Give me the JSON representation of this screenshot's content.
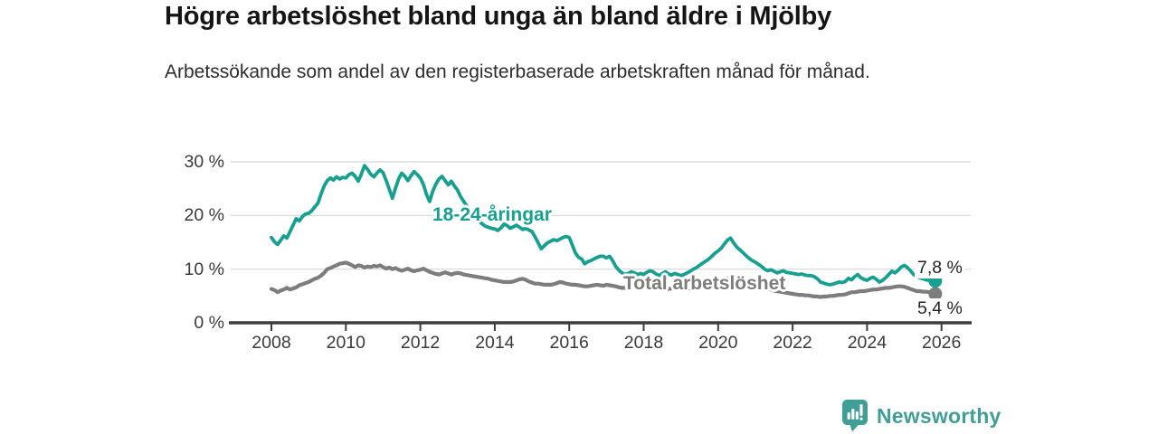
{
  "header": {
    "title": "Högre arbetslöshet bland unga än bland äldre i Mjölby",
    "subtitle": "Arbetssökande som andel av den registerbaserade arbetskraften månad för månad."
  },
  "footer": {
    "brand": "Newsworthy",
    "brand_color": "#3f9e96",
    "logo_icon": "bar-chart-speech-bubble-icon"
  },
  "chart_data": {
    "type": "line",
    "title": "Högre arbetslöshet bland unga än bland äldre i Mjölby",
    "subtitle": "Arbetssökande som andel av den registerbaserade arbetskraften månad för månad.",
    "x_unit": "month",
    "x_start": "2008-01",
    "x_end": "2025-11",
    "ylim": [
      0,
      30
    ],
    "grid": "horizontal",
    "grid_color": "#d8d8d8",
    "axis_color": "#3d3d3d",
    "tick_label_color": "#3a3a3a",
    "y_ticks": [
      {
        "label": "0 %",
        "value": 0
      },
      {
        "label": "10 %",
        "value": 10
      },
      {
        "label": "20 %",
        "value": 20
      },
      {
        "label": "30 %",
        "value": 30
      }
    ],
    "x_ticks": [
      {
        "label": "2008",
        "year": 2008
      },
      {
        "label": "2010",
        "year": 2010
      },
      {
        "label": "2012",
        "year": 2012
      },
      {
        "label": "2014",
        "year": 2014
      },
      {
        "label": "2016",
        "year": 2016
      },
      {
        "label": "2018",
        "year": 2018
      },
      {
        "label": "2020",
        "year": 2020
      },
      {
        "label": "2022",
        "year": 2022
      },
      {
        "label": "2024",
        "year": 2024
      },
      {
        "label": "2026",
        "year": 2026
      }
    ],
    "series": [
      {
        "name": "18-24-åringar",
        "color": "#17a08f",
        "line_width": 3.8,
        "end_value": 7.8,
        "end_label": "7,8 %",
        "values": [
          15.9,
          15.1,
          14.6,
          15.4,
          16.2,
          15.8,
          17.0,
          18.2,
          19.4,
          19.0,
          19.8,
          20.3,
          20.4,
          20.9,
          21.6,
          22.3,
          24.0,
          25.5,
          26.5,
          27.0,
          26.6,
          27.2,
          26.8,
          27.1,
          27.0,
          27.6,
          27.9,
          27.3,
          26.4,
          27.7,
          29.3,
          28.6,
          27.7,
          27.2,
          27.9,
          28.5,
          28.0,
          26.5,
          24.9,
          23.2,
          25.1,
          26.8,
          27.9,
          27.3,
          26.5,
          27.4,
          28.2,
          27.6,
          27.0,
          25.8,
          23.9,
          22.6,
          24.5,
          25.8,
          26.8,
          27.3,
          26.5,
          25.7,
          26.4,
          25.5,
          24.7,
          23.5,
          22.6,
          21.8,
          21.0,
          20.2,
          19.5,
          18.9,
          18.4,
          18.0,
          17.8,
          17.6,
          17.5,
          17.2,
          17.7,
          18.4,
          18.1,
          17.6,
          17.9,
          18.2,
          17.8,
          17.4,
          17.6,
          17.3,
          17.0,
          16.0,
          14.9,
          13.8,
          14.4,
          14.9,
          15.2,
          15.5,
          15.3,
          15.6,
          15.9,
          16.1,
          15.9,
          14.5,
          13.0,
          12.2,
          11.9,
          11.0,
          11.4,
          11.6,
          11.9,
          12.2,
          12.4,
          12.4,
          12.1,
          12.4,
          11.6,
          10.5,
          9.8,
          9.3,
          9.0,
          9.2,
          9.5,
          9.3,
          9.0,
          9.2,
          9.0,
          9.4,
          9.7,
          9.5,
          9.1,
          8.8,
          9.2,
          9.5,
          9.1,
          8.9,
          9.2,
          9.0,
          8.8,
          9.0,
          9.3,
          9.6,
          10.0,
          10.3,
          10.7,
          11.1,
          11.5,
          11.9,
          12.4,
          13.0,
          13.4,
          13.9,
          14.7,
          15.4,
          15.8,
          14.9,
          14.1,
          13.6,
          13.1,
          12.5,
          12.0,
          11.6,
          11.3,
          10.9,
          10.5,
          10.0,
          9.7,
          9.9,
          9.6,
          9.3,
          9.5,
          9.7,
          9.4,
          9.3,
          9.2,
          9.1,
          9.0,
          9.1,
          8.9,
          8.8,
          8.8,
          8.6,
          8.2,
          7.6,
          7.4,
          7.2,
          7.1,
          7.2,
          7.4,
          7.6,
          7.5,
          7.7,
          8.3,
          8.0,
          8.6,
          9.0,
          8.4,
          8.1,
          7.9,
          8.3,
          8.5,
          8.1,
          7.6,
          7.9,
          8.4,
          9.0,
          9.6,
          9.3,
          9.8,
          10.4,
          10.7,
          10.3,
          9.7,
          9.0,
          8.7,
          8.4,
          8.2,
          8.0,
          7.9,
          7.6,
          7.8
        ]
      },
      {
        "name": "Total arbetslöshet",
        "color": "#7d7d7d",
        "line_width": 4.2,
        "end_value": 5.4,
        "end_label": "5,4 %",
        "values": [
          6.3,
          6.1,
          5.7,
          6.0,
          6.2,
          6.5,
          6.2,
          6.4,
          6.6,
          7.0,
          7.2,
          7.4,
          7.6,
          7.9,
          8.2,
          8.4,
          8.8,
          9.3,
          10.0,
          10.2,
          10.5,
          10.7,
          11.0,
          11.1,
          11.2,
          11.0,
          10.7,
          10.4,
          10.7,
          10.6,
          10.3,
          10.5,
          10.4,
          10.6,
          10.5,
          10.7,
          10.4,
          10.1,
          10.3,
          10.0,
          10.2,
          9.9,
          9.7,
          9.9,
          10.1,
          9.8,
          9.6,
          9.8,
          9.9,
          10.1,
          9.8,
          9.5,
          9.3,
          9.1,
          9.0,
          9.2,
          9.4,
          9.2,
          9.0,
          9.2,
          9.3,
          9.2,
          9.0,
          8.9,
          8.8,
          8.7,
          8.6,
          8.5,
          8.4,
          8.3,
          8.2,
          8.0,
          7.9,
          7.8,
          7.7,
          7.6,
          7.6,
          7.6,
          7.7,
          7.9,
          8.1,
          8.2,
          8.0,
          7.7,
          7.5,
          7.3,
          7.3,
          7.2,
          7.1,
          7.1,
          7.1,
          7.2,
          7.4,
          7.6,
          7.5,
          7.3,
          7.2,
          7.1,
          7.1,
          7.0,
          6.9,
          6.8,
          6.8,
          6.9,
          7.0,
          7.1,
          7.0,
          6.9,
          7.1,
          7.0,
          6.9,
          6.8,
          6.6,
          6.5,
          6.5,
          6.6,
          6.7,
          6.6,
          6.5,
          6.4,
          6.5,
          6.6,
          6.5,
          6.4,
          6.3,
          6.4,
          6.5,
          6.4,
          6.3,
          6.4,
          6.5,
          6.4,
          6.3,
          6.4,
          6.5,
          6.4,
          6.5,
          6.6,
          6.7,
          6.8,
          6.9,
          7.0,
          7.1,
          7.2,
          7.4,
          7.6,
          7.9,
          8.2,
          8.4,
          8.5,
          8.4,
          8.2,
          8.0,
          7.8,
          7.6,
          7.4,
          7.2,
          7.0,
          6.8,
          6.6,
          6.4,
          6.2,
          6.0,
          5.9,
          5.8,
          5.7,
          5.6,
          5.5,
          5.4,
          5.3,
          5.2,
          5.2,
          5.1,
          5.1,
          5.0,
          4.9,
          4.9,
          4.8,
          4.9,
          4.9,
          5.0,
          5.0,
          5.1,
          5.2,
          5.2,
          5.3,
          5.5,
          5.7,
          5.7,
          5.8,
          5.9,
          5.9,
          6.0,
          6.1,
          6.2,
          6.2,
          6.3,
          6.4,
          6.5,
          6.5,
          6.6,
          6.7,
          6.8,
          6.8,
          6.7,
          6.5,
          6.3,
          6.1,
          5.9,
          5.9,
          5.8,
          5.8,
          5.7,
          5.5,
          5.4
        ]
      }
    ]
  }
}
